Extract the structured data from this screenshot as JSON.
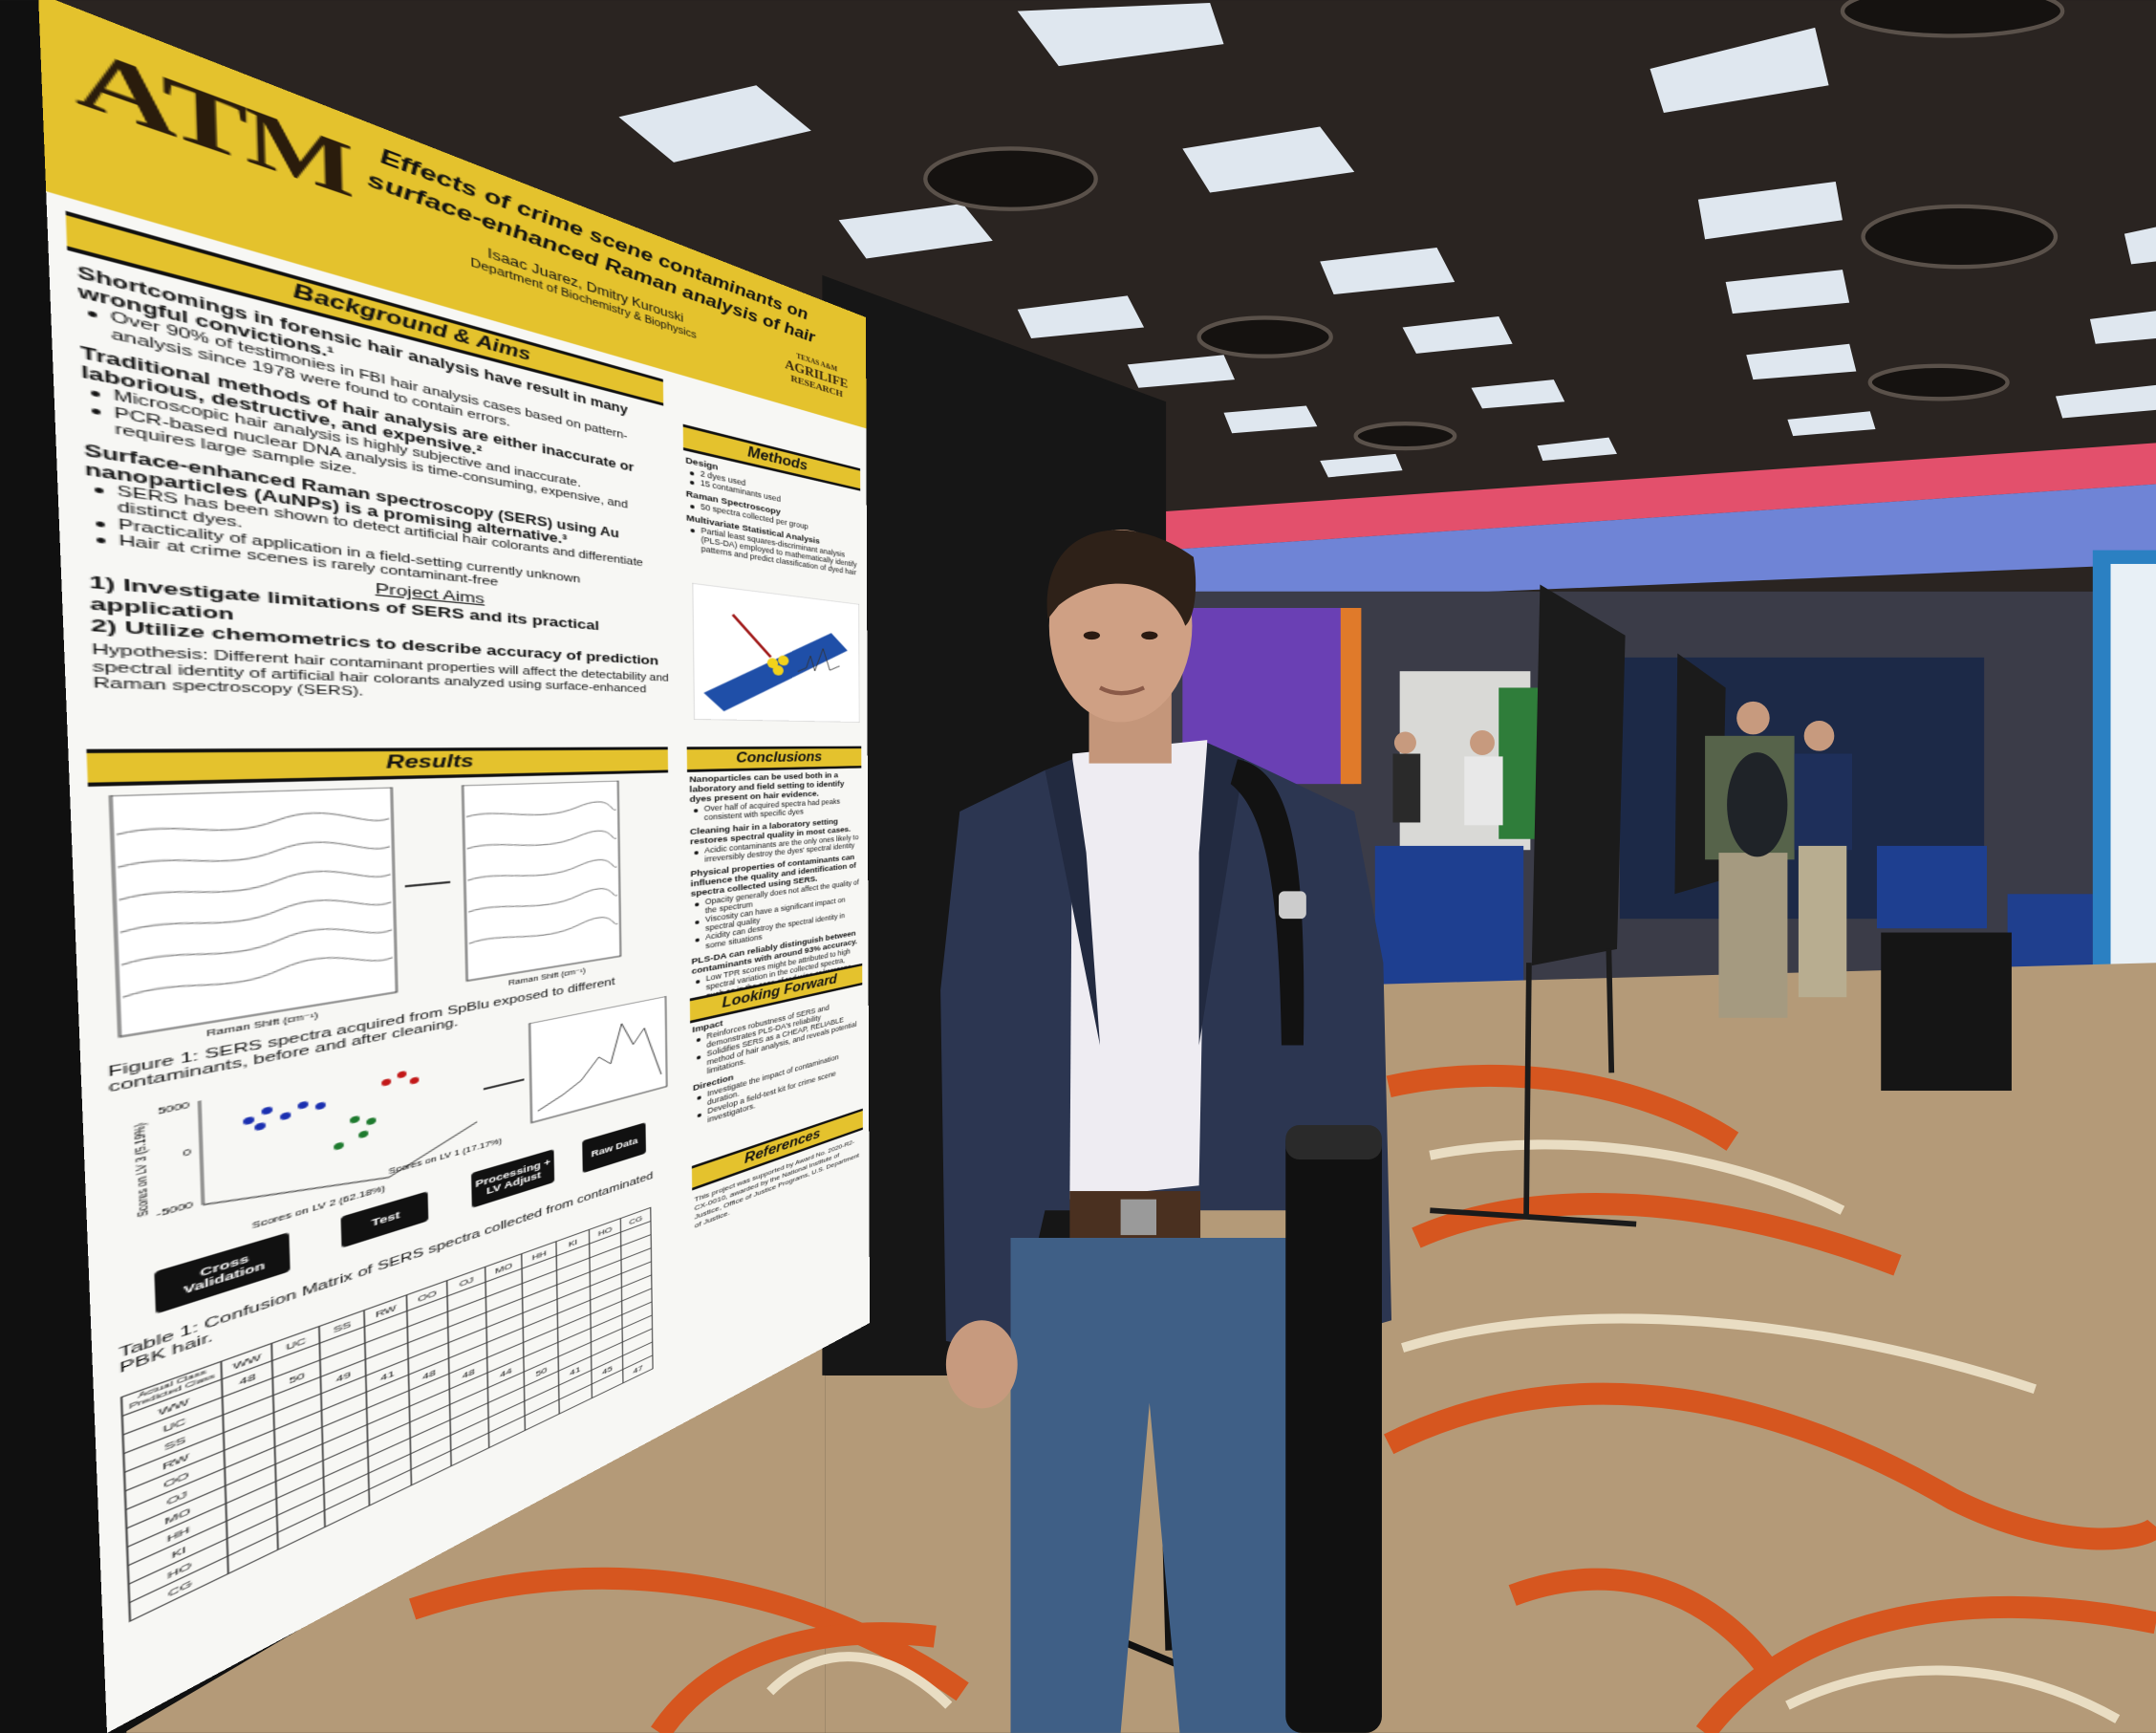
{
  "header": {
    "logo": "ATM",
    "title": [
      "Effects of crime scene contaminants on",
      "surface-enhanced Raman analysis of hair"
    ],
    "authors": "Isaac Juarez, Dmitry Kurouski",
    "department": "Department of Biochemistry & Biophysics",
    "sponsor": [
      "TEXAS A&M",
      "AGRILIFE",
      "RESEARCH"
    ]
  },
  "background": {
    "heading": "Background & Aims",
    "groups": [
      {
        "lead": "Shortcomings in forensic hair analysis have result in many wrongful convictions.¹",
        "bullets": [
          "Over 90% of testimonies in FBI hair analysis cases based on pattern-analysis since 1978 were found to contain errors."
        ]
      },
      {
        "lead": "Traditional methods of hair analysis are either inaccurate or laborious, destructive, and expensive.²",
        "bullets": [
          "Microscopic hair analysis is highly subjective and inaccurate.",
          "PCR-based nuclear DNA analysis is time-consuming, expensive, and requires large sample size."
        ]
      },
      {
        "lead": "Surface-enhanced Raman spectroscopy (SERS) using Au nanoparticles (AuNPs) is a promising alternative.³",
        "bullets": [
          "SERS has been shown to detect artificial hair colorants and differentiate distinct dyes.",
          "Practicality of application in a field-setting currently unknown",
          "Hair at crime scenes is rarely contaminant-free"
        ]
      }
    ]
  },
  "aims": {
    "heading": "Project Aims",
    "items": [
      "1) Investigate limitations of SERS and its practical application",
      "2) Utilize chemometrics to describe accuracy of prediction"
    ],
    "hypothesis": "Hypothesis: Different hair contaminant properties will affect the detectability and spectral identity of artificial hair colorants analyzed using surface-enhanced Raman spectroscopy (SERS)."
  },
  "methods": {
    "heading": "Methods",
    "groups": [
      {
        "lead": "Design",
        "bullets": [
          "2 dyes used",
          "15 contaminants used"
        ]
      },
      {
        "lead": "Raman Spectroscopy",
        "bullets": [
          "50 spectra collected per group"
        ]
      },
      {
        "lead": "Multivariate Statistical Analysis",
        "bullets": [
          "Partial least squares-discriminant analysis (PLS-DA) employed to mathematically identify patterns and predict classification of dyed hair"
        ]
      }
    ]
  },
  "results": {
    "heading": "Results",
    "spectra_axis": "Raman Shift (cm⁻¹)",
    "figure_caption": "Figure 1: SERS spectra acquired from SpBlu exposed to different contaminants, before and after cleaning.",
    "scatter": {
      "ylabel": "Scores on LV 3 (5.19%)",
      "xlabel_left": "Scores on LV 2 (62.18%)",
      "xlabel_right": "Scores on LV 1 (17.17%)",
      "yticks": [
        5000,
        0,
        -5000
      ]
    },
    "workflow": [
      "Raw Data",
      "Processing + LV Adjust",
      "Test",
      "Cross Validation"
    ],
    "table_caption": "Table 1: Confusion Matrix of SERS spectra collected from contaminated PBK hair.",
    "table": {
      "corner_top": "Actual Class",
      "corner_left": "Predicted Class",
      "columns": [
        "WW",
        "UC",
        "SS",
        "RW",
        "OO",
        "OJ",
        "MO",
        "HH",
        "KI",
        "HO",
        "CG"
      ],
      "rows": [
        "WW",
        "UC",
        "SS",
        "RW",
        "OO",
        "OJ",
        "MO",
        "HH",
        "KI",
        "HO",
        "CG"
      ],
      "diagonal": [
        48,
        50,
        49,
        41,
        48,
        48,
        44,
        50,
        41,
        45,
        47
      ]
    }
  },
  "conclusions": {
    "heading": "Conclusions",
    "groups": [
      {
        "lead": "Nanoparticles can be used both in a laboratory and field setting to identify dyes present on hair evidence.",
        "bullets": [
          "Over half of acquired spectra had peaks consistent with specific dyes"
        ]
      },
      {
        "lead": "Cleaning hair in a laboratory setting restores spectral quality in most cases.",
        "bullets": [
          "Acidic contaminants are the only ones likely to irreversibly destroy the dyes' spectral identity"
        ]
      },
      {
        "lead": "Physical properties of contaminants can influence the quality and identification of spectra collected using SERS.",
        "bullets": [
          "Opacity generally does not affect the quality of the spectrum",
          "Viscosity can have a significant impact on spectral quality",
          "Acidity can destroy the spectral identity in some situations"
        ]
      },
      {
        "lead": "PLS-DA can reliably distinguish between contaminants with around 93% accuracy.",
        "bullets": [
          "Low TPR scores might be attributed to high spectral variation in the collected spectra, such as in the case of red wine or kerosene"
        ]
      }
    ]
  },
  "looking_forward": {
    "heading": "Looking Forward",
    "groups": [
      {
        "lead": "Impact",
        "bullets": [
          "Reinforces robustness of SERS and demonstrates PLS-DA's reliability",
          "Solidifies SERS as a CHEAP, RELIABLE method of hair analysis, and reveals potential limitations."
        ]
      },
      {
        "lead": "Direction",
        "bullets": [
          "Investigate the impact of contamination duration.",
          "Develop a field-test kit for crime scene investigators."
        ]
      }
    ]
  },
  "references": {
    "heading": "References",
    "text": "This project was supported by Award No. 2020-R2-CX-0010, awarded by the National Institute of Justice, Office of Justice Programs, U.S. Department of Justice."
  }
}
